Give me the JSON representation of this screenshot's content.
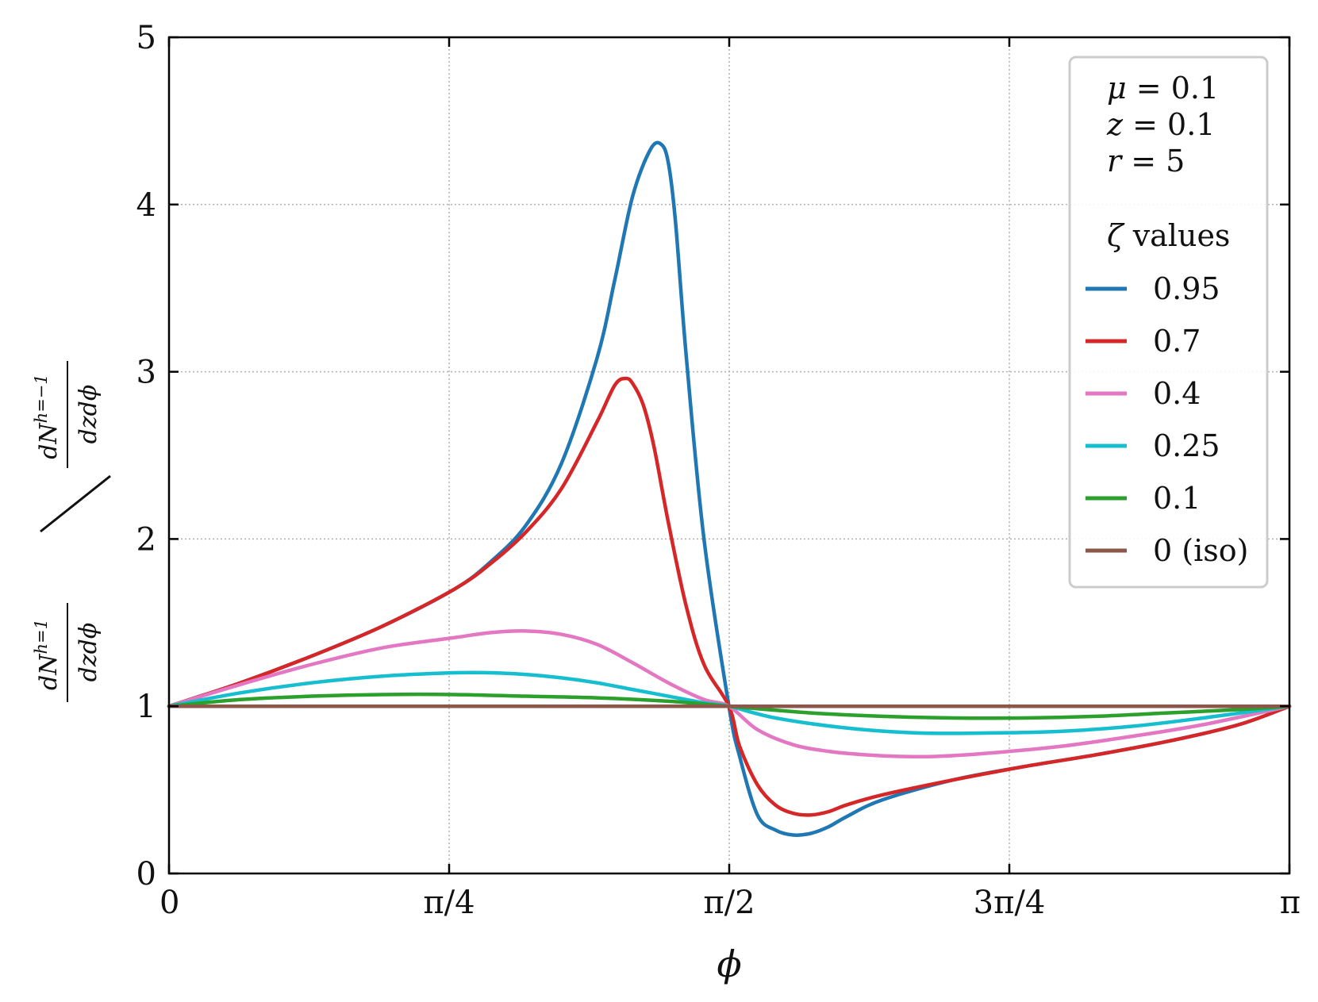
{
  "chart_data": {
    "type": "line",
    "title": "",
    "xlabel": "ϕ",
    "xlim": [
      0,
      3.14159265
    ],
    "ylim": [
      0,
      5
    ],
    "x_ticks": [
      0,
      0.78539816,
      1.57079633,
      2.35619449,
      3.14159265
    ],
    "x_tick_labels": [
      "0",
      "π/4",
      "π/2",
      "3π/4",
      "π"
    ],
    "y_ticks": [
      0,
      1,
      2,
      3,
      4,
      5
    ],
    "y_tick_labels": [
      "0",
      "1",
      "2",
      "3",
      "4",
      "5"
    ],
    "ylabel": {
      "numerator_left": "dN",
      "numerator_left_sup": "h=1",
      "denominator_left": "dzdϕ",
      "divider": "/",
      "numerator_right": "dN",
      "numerator_right_sup": "h=−1",
      "denominator_right": "dzdϕ"
    },
    "grid": true,
    "legend": {
      "placement": "top-right",
      "parameters": [
        {
          "var": "μ",
          "text": " = 0.1"
        },
        {
          "var": "z",
          "text": " = 0.1"
        },
        {
          "var": "r",
          "text": " = 5"
        }
      ],
      "title_var": "ζ",
      "title_text": " values"
    },
    "series": [
      {
        "name": "0.95",
        "color": "#1f77b4",
        "x": [
          0,
          0.2,
          0.4,
          0.6,
          0.8,
          0.9,
          1.0,
          1.1,
          1.2,
          1.25,
          1.3,
          1.35,
          1.38,
          1.4,
          1.42,
          1.45,
          1.5,
          1.57,
          1.6,
          1.65,
          1.7,
          1.75,
          1.8,
          1.85,
          1.9,
          2.0,
          2.2,
          2.4,
          2.6,
          2.8,
          3.0,
          3.14159
        ],
        "y": [
          1.0,
          1.14,
          1.3,
          1.48,
          1.7,
          1.86,
          2.08,
          2.45,
          3.08,
          3.55,
          4.05,
          4.33,
          4.36,
          4.25,
          3.9,
          3.1,
          2.0,
          1.0,
          0.7,
          0.35,
          0.26,
          0.23,
          0.24,
          0.28,
          0.34,
          0.44,
          0.56,
          0.64,
          0.71,
          0.79,
          0.89,
          1.0
        ]
      },
      {
        "name": "0.7",
        "color": "#d62728",
        "x": [
          0,
          0.2,
          0.4,
          0.6,
          0.8,
          0.9,
          1.0,
          1.1,
          1.2,
          1.25,
          1.28,
          1.3,
          1.33,
          1.36,
          1.4,
          1.45,
          1.5,
          1.57,
          1.6,
          1.65,
          1.7,
          1.75,
          1.8,
          1.85,
          1.9,
          2.0,
          2.2,
          2.4,
          2.6,
          2.8,
          3.0,
          3.14159
        ],
        "y": [
          1.0,
          1.14,
          1.3,
          1.48,
          1.7,
          1.85,
          2.04,
          2.3,
          2.7,
          2.92,
          2.96,
          2.93,
          2.8,
          2.55,
          2.1,
          1.6,
          1.25,
          1.0,
          0.76,
          0.53,
          0.41,
          0.36,
          0.35,
          0.37,
          0.41,
          0.47,
          0.56,
          0.64,
          0.71,
          0.79,
          0.89,
          1.0
        ]
      },
      {
        "name": "0.4",
        "color": "#e377c2",
        "x": [
          0,
          0.2,
          0.4,
          0.6,
          0.8,
          0.9,
          1.0,
          1.1,
          1.2,
          1.3,
          1.4,
          1.5,
          1.57,
          1.65,
          1.75,
          1.85,
          1.95,
          2.05,
          2.15,
          2.3,
          2.5,
          2.7,
          2.9,
          3.14159
        ],
        "y": [
          1.0,
          1.13,
          1.25,
          1.35,
          1.41,
          1.44,
          1.45,
          1.43,
          1.37,
          1.26,
          1.14,
          1.04,
          1.0,
          0.86,
          0.77,
          0.73,
          0.71,
          0.7,
          0.7,
          0.72,
          0.76,
          0.82,
          0.89,
          1.0
        ]
      },
      {
        "name": "0.25",
        "color": "#17becf",
        "x": [
          0,
          0.2,
          0.4,
          0.6,
          0.8,
          0.9,
          1.0,
          1.1,
          1.2,
          1.3,
          1.4,
          1.5,
          1.57,
          1.7,
          1.9,
          2.1,
          2.3,
          2.5,
          2.7,
          2.9,
          3.14159
        ],
        "y": [
          1.0,
          1.08,
          1.14,
          1.18,
          1.2,
          1.2,
          1.19,
          1.17,
          1.14,
          1.1,
          1.06,
          1.02,
          1.0,
          0.93,
          0.87,
          0.84,
          0.84,
          0.85,
          0.88,
          0.93,
          1.0
        ]
      },
      {
        "name": "0.1",
        "color": "#2ca02c",
        "x": [
          0,
          0.2,
          0.4,
          0.6,
          0.8,
          1.0,
          1.2,
          1.4,
          1.57,
          1.8,
          2.0,
          2.2,
          2.4,
          2.6,
          2.8,
          3.0,
          3.14159
        ],
        "y": [
          1.0,
          1.04,
          1.06,
          1.07,
          1.07,
          1.06,
          1.05,
          1.03,
          1.0,
          0.96,
          0.94,
          0.93,
          0.93,
          0.94,
          0.96,
          0.98,
          1.0
        ]
      },
      {
        "name": "0 (iso)",
        "color": "#8c564b",
        "x": [
          0,
          3.14159
        ],
        "y": [
          1.0,
          1.0
        ]
      }
    ]
  }
}
